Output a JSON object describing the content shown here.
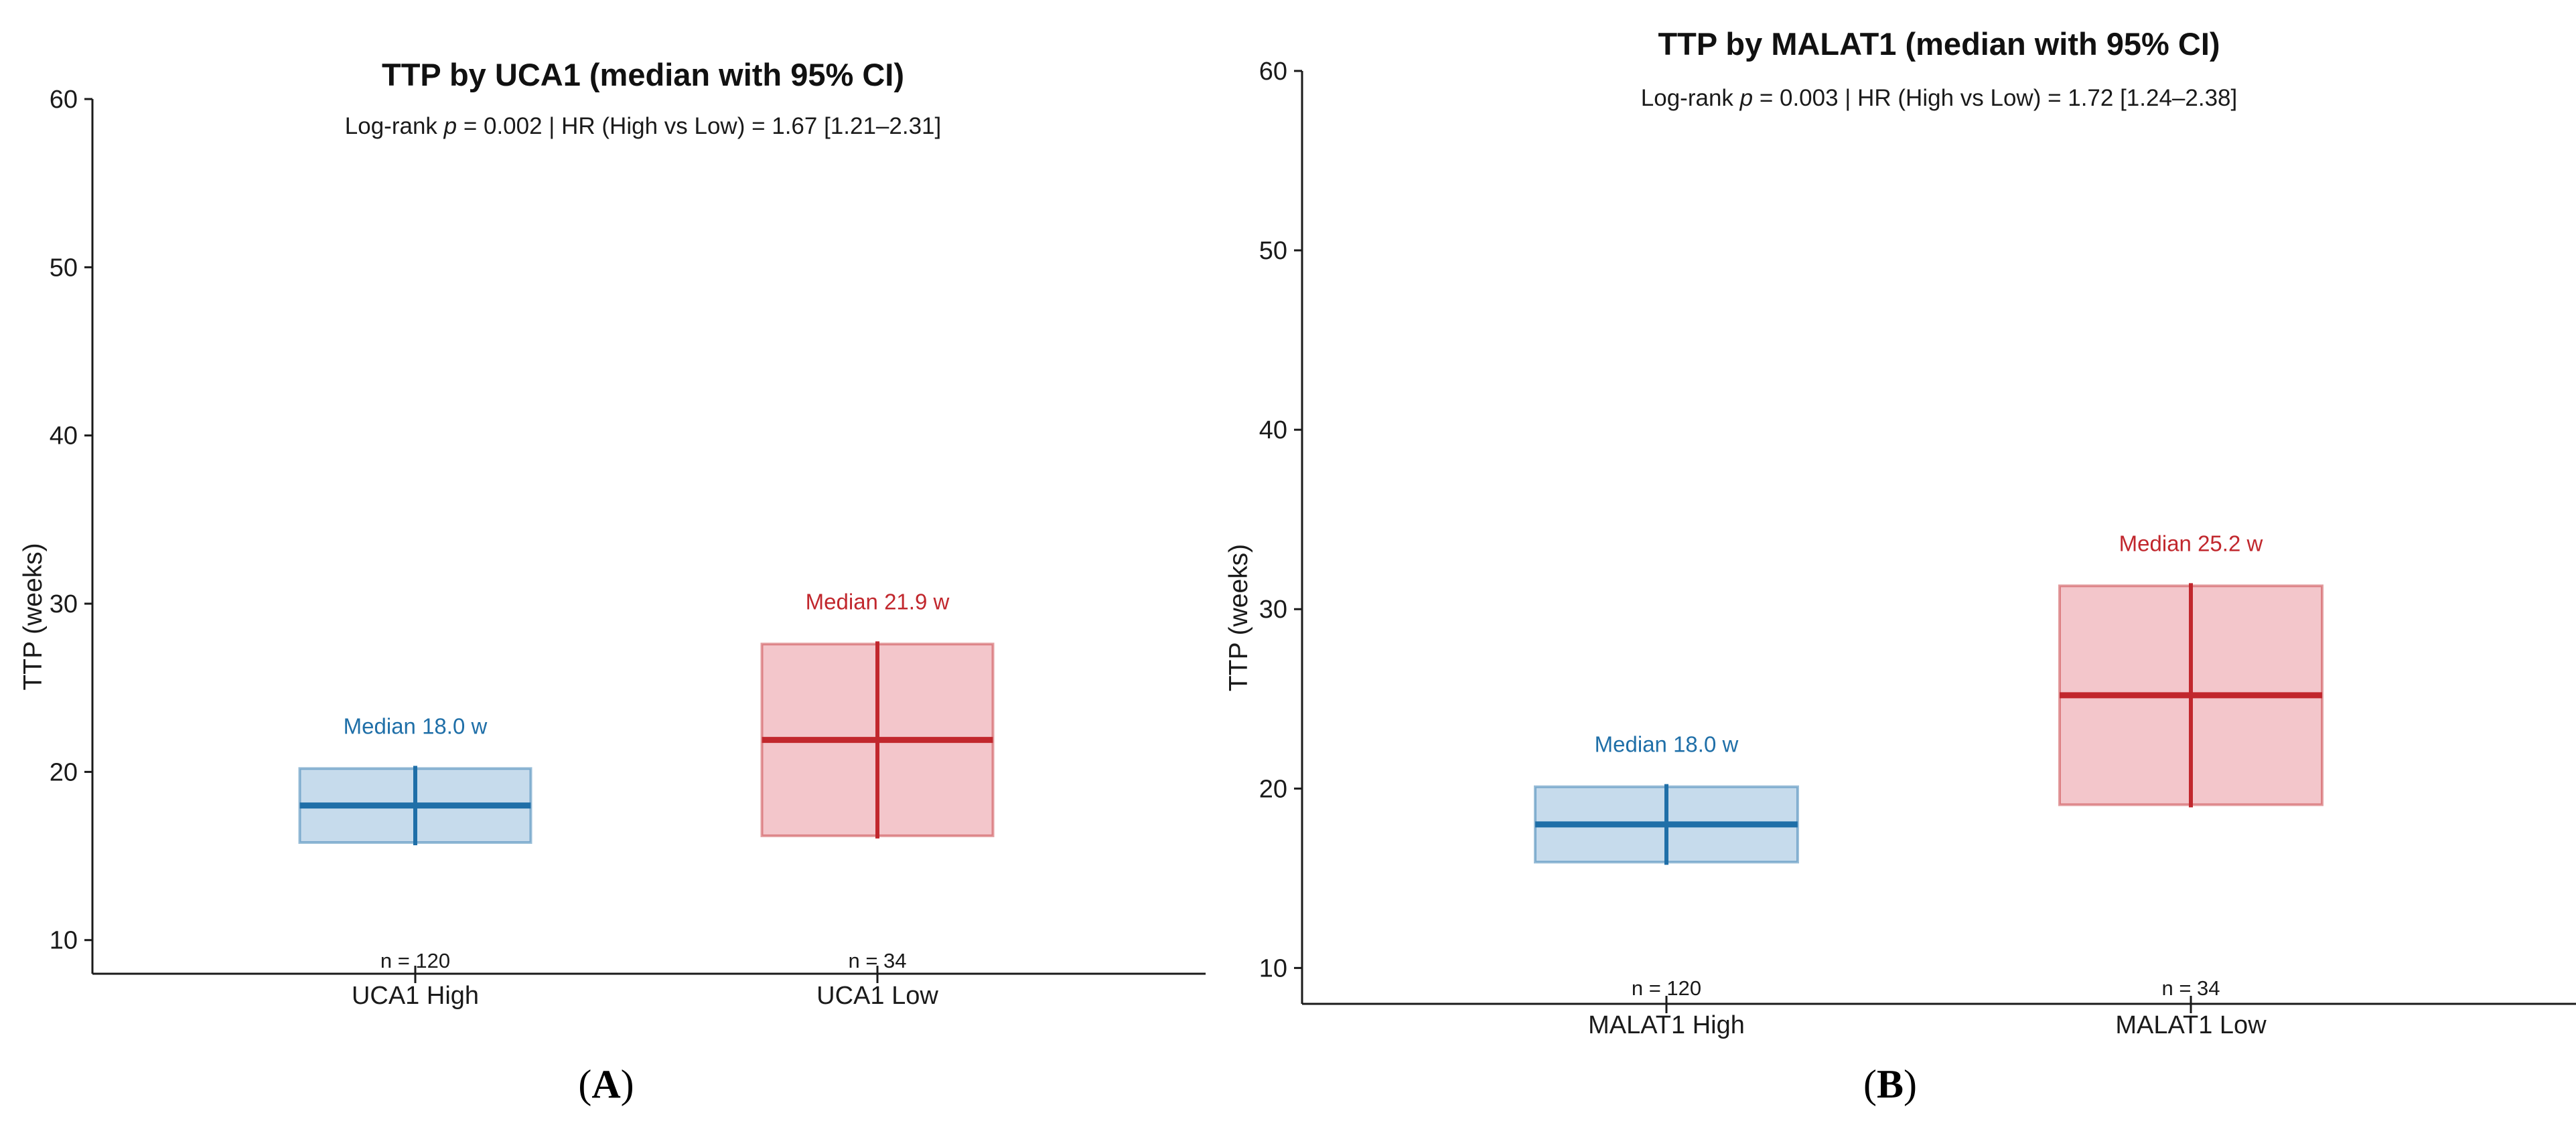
{
  "figure_labels": [
    "(A)",
    "(B)"
  ],
  "chart_data": [
    {
      "type": "box",
      "panel": "A",
      "title": "TTP by UCA1 (median with 95% CI)",
      "stats_text": {
        "prefix": "Log-rank ",
        "p_symbol": "p",
        "p_value": " = 0.002",
        "separator": "   |   ",
        "hr_text": "HR (High vs Low) = 1.67 [1.21–2.31]"
      },
      "xlabel": "",
      "ylabel": "TTP (weeks)",
      "ylim": [
        8,
        60
      ],
      "yticks": [
        10,
        20,
        30,
        40,
        50,
        60
      ],
      "grid": false,
      "groups": [
        {
          "name": "UCA1 High",
          "median": 18.0,
          "ci": [
            15.8,
            20.2
          ],
          "n_label": "n = 120",
          "median_label": "Median 18.0 w",
          "color": "#1f6fa8",
          "fill": "#c6dbec"
        },
        {
          "name": "UCA1 Low",
          "median": 21.9,
          "ci": [
            16.2,
            27.6
          ],
          "n_label": "n = 34",
          "median_label": "Median 21.9 w",
          "color": "#c1272d",
          "fill": "#f3c6cb"
        }
      ]
    },
    {
      "type": "box",
      "panel": "B",
      "title": "TTP by MALAT1 (median with 95% CI)",
      "stats_text": {
        "prefix": "Log-rank ",
        "p_symbol": "p",
        "p_value": " = 0.003",
        "separator": "   |   ",
        "hr_text": "HR (High vs Low) = 1.72 [1.24–2.38]"
      },
      "xlabel": "",
      "ylabel": "TTP (weeks)",
      "ylim": [
        8,
        60
      ],
      "yticks": [
        10,
        20,
        30,
        40,
        50,
        60
      ],
      "grid": false,
      "groups": [
        {
          "name": "MALAT1 High",
          "median": 18.0,
          "ci": [
            15.9,
            20.1
          ],
          "n_label": "n = 120",
          "median_label": "Median 18.0 w",
          "color": "#1f6fa8",
          "fill": "#c6dbec"
        },
        {
          "name": "MALAT1 Low",
          "median": 25.2,
          "ci": [
            19.1,
            31.3
          ],
          "n_label": "n = 34",
          "median_label": "Median 25.2 w",
          "color": "#c1272d",
          "fill": "#f3c6cb"
        }
      ]
    }
  ]
}
